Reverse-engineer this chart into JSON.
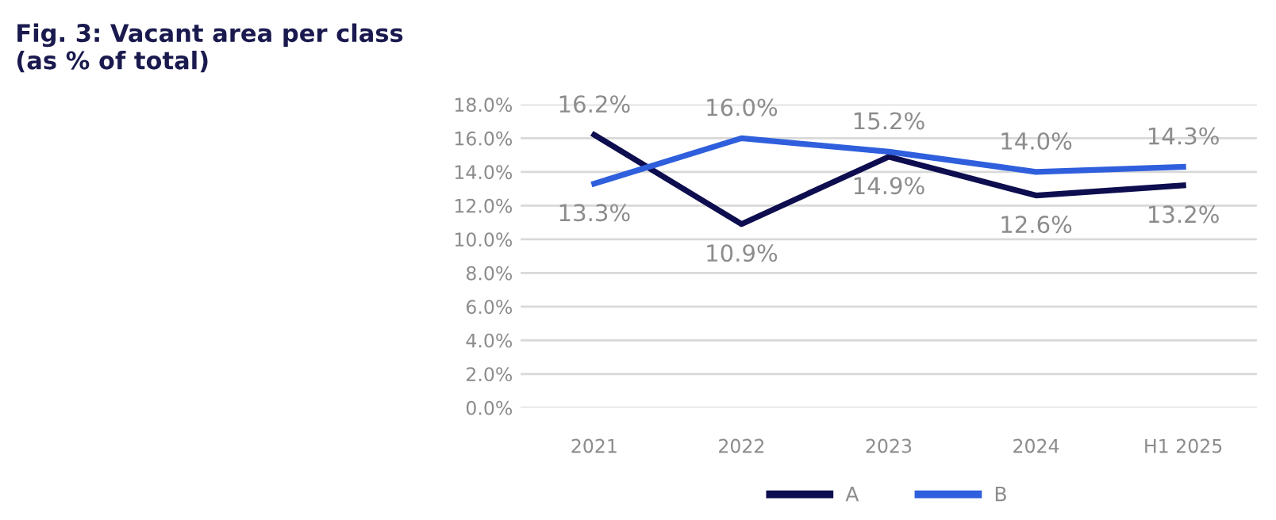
{
  "chart_data": {
    "type": "line",
    "title": "Fig. 3: Vacant area per class\n(as % of total)",
    "categories": [
      "2021",
      "2022",
      "2023",
      "2024",
      "H1 2025"
    ],
    "series": [
      {
        "name": "A",
        "color": "#0d0d4f",
        "values": [
          16.2,
          10.9,
          14.9,
          12.6,
          13.2
        ],
        "value_labels": [
          "16.2%",
          "10.9%",
          "14.9%",
          "12.6%",
          "13.2%"
        ]
      },
      {
        "name": "B",
        "color": "#2f5fdc",
        "values": [
          13.3,
          16.0,
          15.2,
          14.0,
          14.3
        ],
        "value_labels": [
          "13.3%",
          "16.0%",
          "15.2%",
          "14.0%",
          "14.3%"
        ]
      }
    ],
    "ylim": [
      0,
      18
    ],
    "yticks": [
      {
        "value": 0,
        "label": "0.0%"
      },
      {
        "value": 2,
        "label": "2.0%"
      },
      {
        "value": 4,
        "label": "4.0%"
      },
      {
        "value": 6,
        "label": "6.0%"
      },
      {
        "value": 8,
        "label": "8.0%"
      },
      {
        "value": 10,
        "label": "10.0%"
      },
      {
        "value": 12,
        "label": "12.0%"
      },
      {
        "value": 14,
        "label": "14.0%"
      },
      {
        "value": 16,
        "label": "16.0%"
      },
      {
        "value": 18,
        "label": "18.0%"
      }
    ],
    "grid": "y",
    "legend": "bottom",
    "marker": "none",
    "line_style": "solid"
  }
}
